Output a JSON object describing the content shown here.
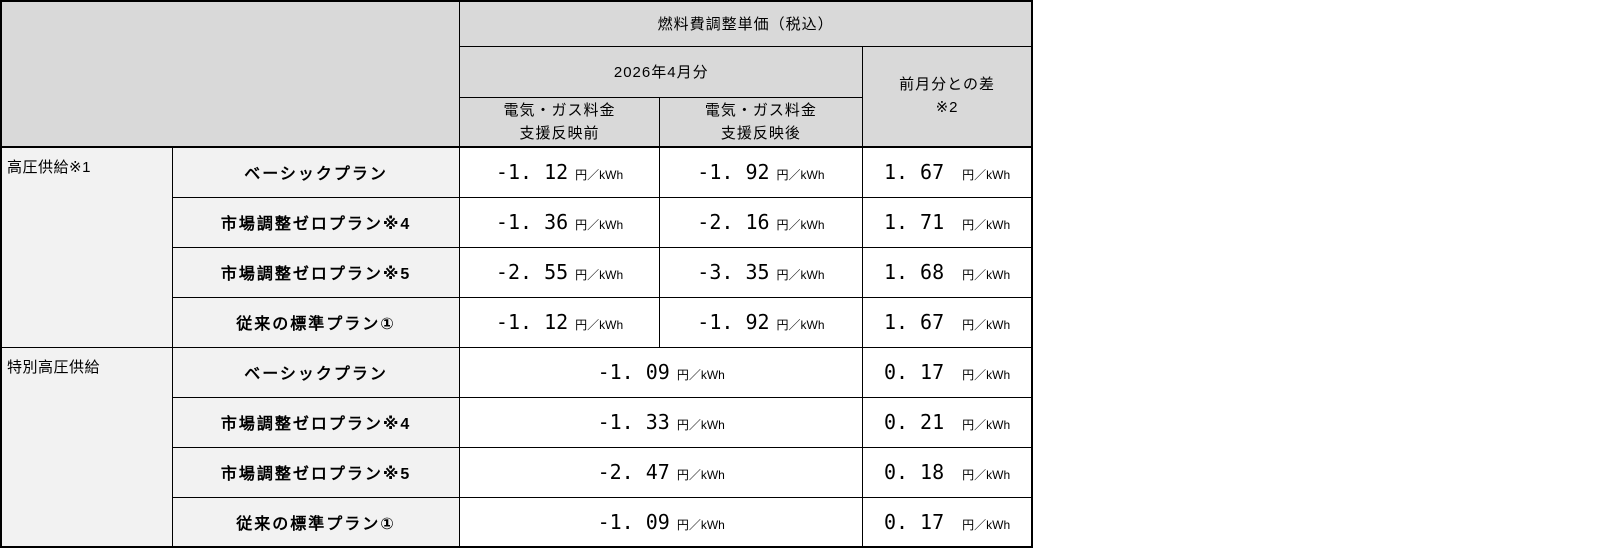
{
  "header": {
    "title": "燃料費調整単価（税込）",
    "month": "2026年4月分",
    "diff_line1": "前月分との差",
    "diff_line2": "※2",
    "before_line1": "電気・ガス料金",
    "before_line2": "支援反映前",
    "after_line1": "電気・ガス料金",
    "after_line2": "支援反映後"
  },
  "unit": "円／kWh",
  "groups": [
    {
      "category": "高圧供給※1",
      "rows": [
        {
          "plan": "ベーシックプラン",
          "before": "-1. 12",
          "after": "-1. 92",
          "diff": "1. 67"
        },
        {
          "plan": "市場調整ゼロプラン※4",
          "before": "-1. 36",
          "after": "-2. 16",
          "diff": "1. 71"
        },
        {
          "plan": "市場調整ゼロプラン※5",
          "before": "-2. 55",
          "after": "-3. 35",
          "diff": "1. 68"
        },
        {
          "plan": "従来の標準プラン①",
          "before": "-1. 12",
          "after": "-1. 92",
          "diff": "1. 67"
        }
      ]
    },
    {
      "category": "特別高圧供給",
      "rows": [
        {
          "plan": "ベーシックプラン",
          "value": "-1. 09",
          "diff": "0. 17"
        },
        {
          "plan": "市場調整ゼロプラン※4",
          "value": "-1. 33",
          "diff": "0. 21"
        },
        {
          "plan": "市場調整ゼロプラン※5",
          "value": "-2. 47",
          "diff": "0. 18"
        },
        {
          "plan": "従来の標準プラン①",
          "value": "-1. 09",
          "diff": "0. 17"
        }
      ]
    }
  ],
  "colors": {
    "header_bg": "#d9d9d9",
    "label_bg": "#f2f2f2",
    "border": "#000000",
    "value_bg": "#ffffff"
  }
}
